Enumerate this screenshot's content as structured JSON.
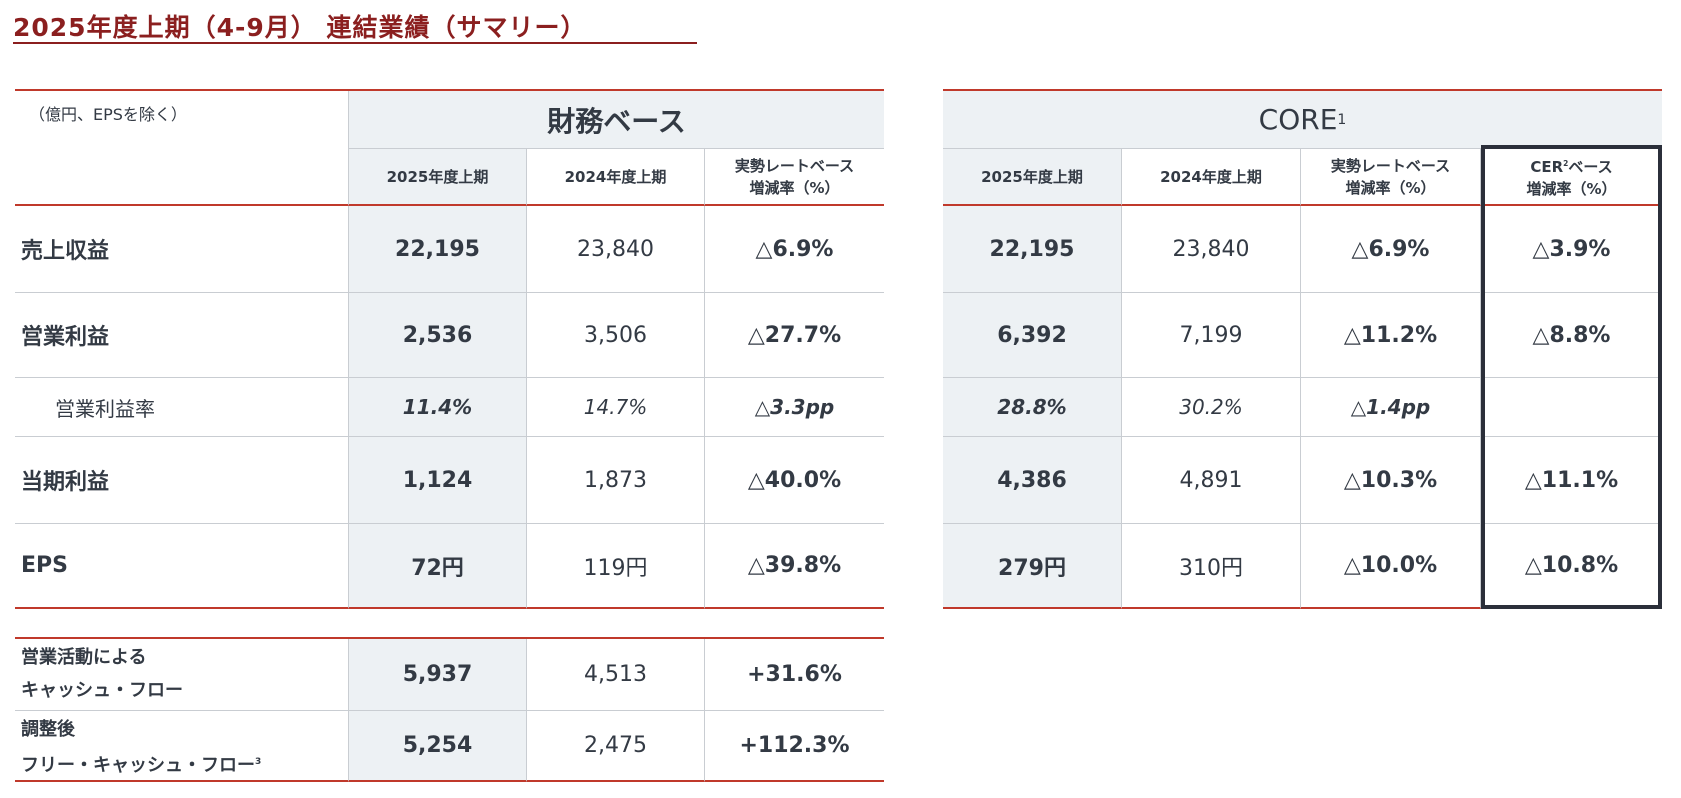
{
  "title": "2025年度上期（4-9月） 連結業績（サマリー）",
  "unit_note": "（億円、EPSを除く）",
  "financial": {
    "heading": "財務ベース",
    "columns": [
      "2025年度上期",
      "2024年度上期",
      "実勢レートベース\n増減率（%）"
    ],
    "rows": [
      {
        "label": "売上収益",
        "values": [
          "22,195",
          "23,840",
          "△6.9%"
        ],
        "style": "main"
      },
      {
        "label": "営業利益",
        "values": [
          "2,536",
          "3,506",
          "△27.7%"
        ],
        "style": "main"
      },
      {
        "label": "営業利益率",
        "values": [
          "11.4%",
          "14.7%",
          "△3.3pp"
        ],
        "style": "sub"
      },
      {
        "label": "当期利益",
        "values": [
          "1,124",
          "1,873",
          "△40.0%"
        ],
        "style": "main"
      },
      {
        "label": "EPS",
        "values": [
          "72円",
          "119円",
          "△39.8%"
        ],
        "style": "main"
      }
    ]
  },
  "cash_flow": {
    "rows": [
      {
        "label": "営業活動による\nキャッシュ・フロー",
        "values": [
          "5,937",
          "4,513",
          "+31.6%"
        ]
      },
      {
        "label": "調整後\nフリー・キャッシュ・フロー",
        "footnote": "3",
        "values": [
          "5,254",
          "2,475",
          "+112.3%"
        ]
      }
    ]
  },
  "core": {
    "heading": "CORE",
    "heading_footnote": "1",
    "columns": [
      "2025年度上期",
      "2024年度上期",
      "実勢レートベース\n増減率（%）",
      "CER\n増減率（%）"
    ],
    "cer_prefix": "CER",
    "cer_footnote": "2",
    "cer_suffix": "ベース",
    "rows": [
      {
        "values": [
          "22,195",
          "23,840",
          "△6.9%",
          "△3.9%"
        ],
        "style": "main"
      },
      {
        "values": [
          "6,392",
          "7,199",
          "△11.2%",
          "△8.8%"
        ],
        "style": "main"
      },
      {
        "values": [
          "28.8%",
          "30.2%",
          "△1.4pp",
          ""
        ],
        "style": "sub"
      },
      {
        "values": [
          "4,386",
          "4,891",
          "△10.3%",
          "△11.1%"
        ],
        "style": "main"
      },
      {
        "values": [
          "279円",
          "310円",
          "△10.0%",
          "△10.8%"
        ],
        "style": "main"
      }
    ]
  },
  "colors": {
    "title": "#8b1f1f",
    "rule": "#c0392b",
    "band": "#edf1f4",
    "cer_border": "#2b2f3a"
  }
}
